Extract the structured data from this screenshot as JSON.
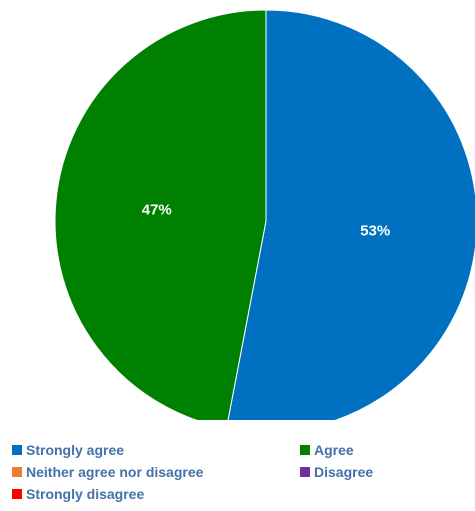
{
  "chart_data": {
    "type": "pie",
    "title": "",
    "categories": [
      "Strongly agree",
      "Agree",
      "Neither agree nor disagree",
      "Disagree",
      "Strongly disagree"
    ],
    "values": [
      53,
      47,
      0,
      0,
      0
    ],
    "data_labels": [
      "53%",
      "47%",
      "",
      "",
      ""
    ],
    "colors": [
      "#0070c0",
      "#008000",
      "#ed7d31",
      "#7030a0",
      "#ff0000"
    ],
    "legend_position": "bottom",
    "start_angle": "12 o'clock",
    "direction": "clockwise"
  },
  "legend": {
    "items": [
      {
        "label": "Strongly agree",
        "color": "#0070c0"
      },
      {
        "label": "Agree",
        "color": "#008000"
      },
      {
        "label": "Neither agree nor disagree",
        "color": "#ed7d31"
      },
      {
        "label": "Disagree",
        "color": "#7030a0"
      },
      {
        "label": "Strongly disagree",
        "color": "#ff0000"
      }
    ]
  }
}
